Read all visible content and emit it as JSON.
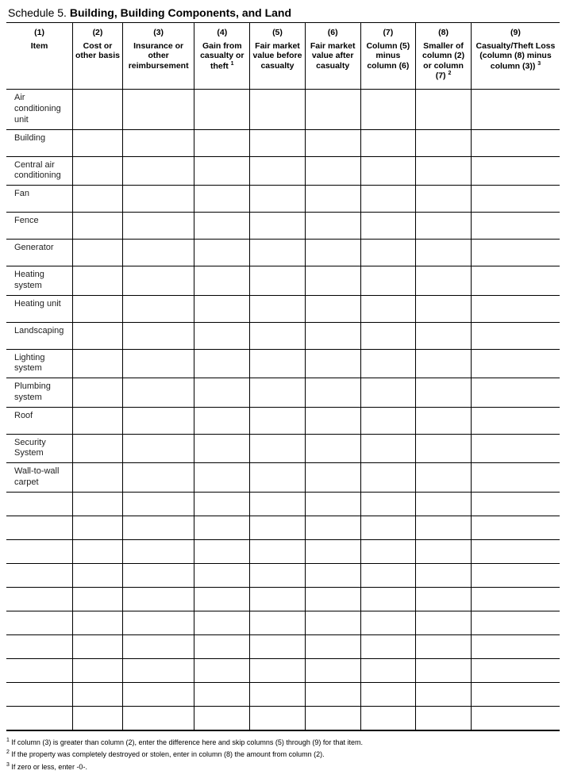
{
  "title": {
    "label": "Schedule 5.",
    "text": "Building, Building Components, and Land"
  },
  "columns": [
    {
      "num": "(1)",
      "label": "Item",
      "width": "12%"
    },
    {
      "num": "(2)",
      "label": "Cost or other basis",
      "width": "9%"
    },
    {
      "num": "(3)",
      "label": "Insurance or other reimbursement",
      "width": "13%"
    },
    {
      "num": "(4)",
      "label": "Gain from casualty or theft",
      "sup": "1",
      "width": "10%"
    },
    {
      "num": "(5)",
      "label": "Fair market value before casualty",
      "width": "10%"
    },
    {
      "num": "(6)",
      "label": "Fair market value after casualty",
      "width": "10%"
    },
    {
      "num": "(7)",
      "label": "Column (5) minus column (6)",
      "width": "10%"
    },
    {
      "num": "(8)",
      "label": "Smaller of column (2) or column (7)",
      "sup": "2",
      "width": "10%"
    },
    {
      "num": "(9)",
      "label": "Casualty/Theft Loss (column (8) minus column (3))",
      "sup": "3",
      "width": "16%"
    }
  ],
  "rows": [
    {
      "item": "Air conditioning unit"
    },
    {
      "item": "Building"
    },
    {
      "item": "Central air conditioning"
    },
    {
      "item": "Fan"
    },
    {
      "item": "Fence"
    },
    {
      "item": "Generator"
    },
    {
      "item": "Heating system"
    },
    {
      "item": "Heating unit"
    },
    {
      "item": "Landscaping"
    },
    {
      "item": "Lighting system"
    },
    {
      "item": "Plumbing system"
    },
    {
      "item": "Roof"
    },
    {
      "item": "Security System"
    },
    {
      "item": "Wall-to-wall carpet"
    }
  ],
  "blank_rows": 10,
  "footnotes": [
    {
      "sup": "1",
      "text": "If column (3) is greater than column (2), enter the difference here and skip columns (5) through (9) for that item."
    },
    {
      "sup": "2",
      "text": "If the property was completely destroyed or stolen, enter in column (8) the amount from column (2)."
    },
    {
      "sup": "3",
      "text": "If zero or less, enter -0-."
    }
  ]
}
